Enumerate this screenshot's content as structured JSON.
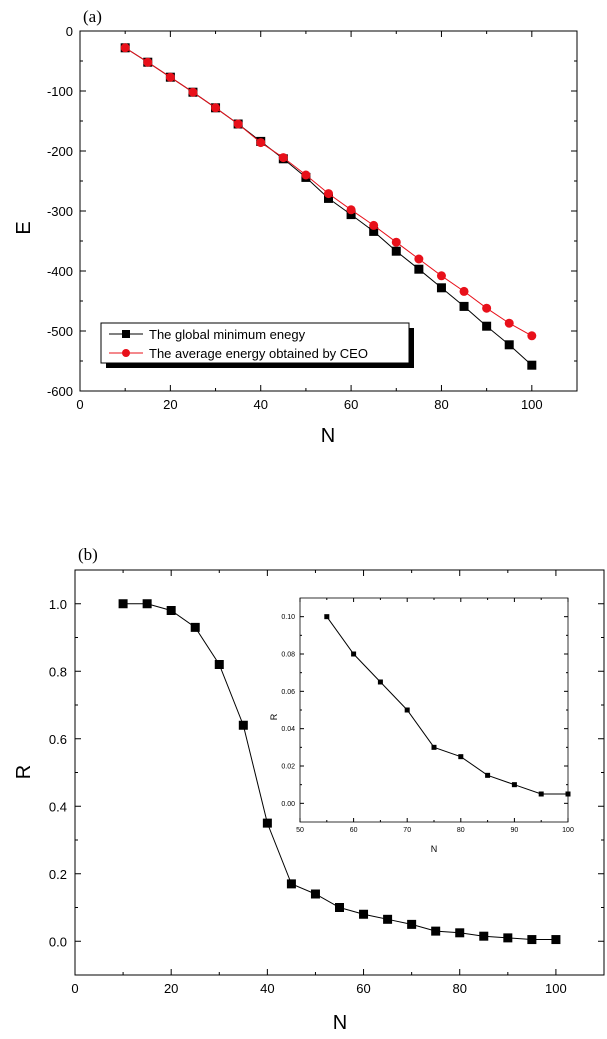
{
  "chart_data": [
    {
      "type": "line",
      "panel_label": "(a)",
      "xlabel": "N",
      "ylabel": "E",
      "xlim": [
        0,
        110
      ],
      "ylim": [
        -600,
        0
      ],
      "xticks": [
        0,
        20,
        40,
        60,
        80,
        100
      ],
      "yticks": [
        0,
        -100,
        -200,
        -300,
        -400,
        -500,
        -600
      ],
      "legend_position": "bottom-left",
      "x": [
        10,
        15,
        20,
        25,
        30,
        35,
        40,
        45,
        50,
        55,
        60,
        65,
        70,
        75,
        80,
        85,
        90,
        95,
        100
      ],
      "series": [
        {
          "name": "The global minimum enegy",
          "color": "#000000",
          "marker": "square",
          "values": [
            -28,
            -52,
            -77,
            -102,
            -128,
            -155,
            -184,
            -213,
            -244,
            -279,
            -306,
            -334,
            -367,
            -397,
            -428,
            -459,
            -492,
            -523,
            -557
          ]
        },
        {
          "name": "The average energy obtained by CEO",
          "color": "#e8101a",
          "marker": "circle",
          "values": [
            -28,
            -52,
            -77,
            -102,
            -128,
            -155,
            -186,
            -211,
            -240,
            -271,
            -298,
            -324,
            -352,
            -380,
            -408,
            -434,
            -462,
            -487,
            -508
          ]
        }
      ]
    },
    {
      "type": "line",
      "panel_label": "(b)",
      "xlabel": "N",
      "ylabel": "R",
      "xlim": [
        0,
        110
      ],
      "ylim": [
        -0.1,
        1.1
      ],
      "xticks": [
        0,
        20,
        40,
        60,
        80,
        100
      ],
      "yticks": [
        0.0,
        0.2,
        0.4,
        0.6,
        0.8,
        1.0
      ],
      "x": [
        10,
        15,
        20,
        25,
        30,
        35,
        40,
        45,
        50,
        55,
        60,
        65,
        70,
        75,
        80,
        85,
        90,
        95,
        100
      ],
      "series": [
        {
          "color": "#000000",
          "marker": "square",
          "values": [
            1.0,
            1.0,
            0.98,
            0.93,
            0.82,
            0.64,
            0.35,
            0.17,
            0.14,
            0.1,
            0.08,
            0.065,
            0.05,
            0.03,
            0.025,
            0.015,
            0.01,
            0.005,
            0.005
          ]
        }
      ],
      "inset": {
        "type": "line",
        "xlabel": "N",
        "ylabel": "R",
        "xlim": [
          50,
          100
        ],
        "ylim": [
          -0.01,
          0.11
        ],
        "xticks": [
          50,
          60,
          70,
          80,
          90,
          100
        ],
        "yticks": [
          0.0,
          0.02,
          0.04,
          0.06,
          0.08,
          0.1
        ],
        "x": [
          55,
          60,
          65,
          70,
          75,
          80,
          85,
          90,
          95,
          100
        ],
        "values": [
          0.1,
          0.08,
          0.065,
          0.05,
          0.03,
          0.025,
          0.015,
          0.01,
          0.005,
          0.005
        ]
      }
    }
  ]
}
